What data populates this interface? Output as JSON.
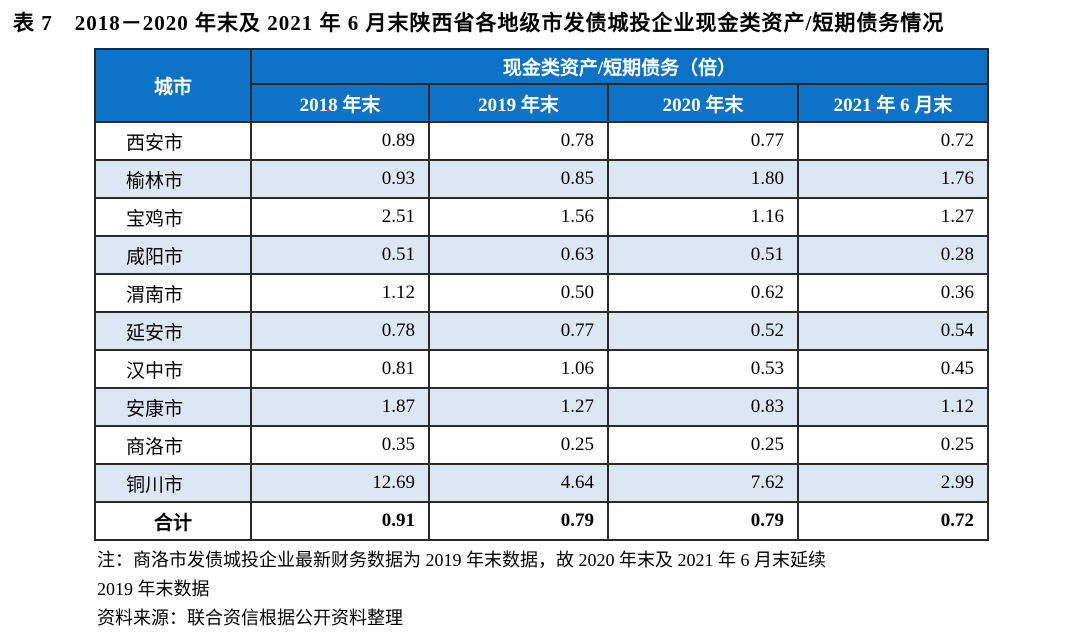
{
  "page": {
    "title": "表 7　2018－2020 年末及 2021 年 6 月末陕西省各地级市发债城投企业现金类资产/短期债务情况"
  },
  "table": {
    "corner_label": "城市",
    "group_label": "现金类资产/短期债务（倍）",
    "period_headers": [
      "2018 年末",
      "2019 年末",
      "2020 年末",
      "2021 年 6 月末"
    ],
    "rows": [
      {
        "city": "西安市",
        "values": [
          "0.89",
          "0.78",
          "0.77",
          "0.72"
        ]
      },
      {
        "city": "榆林市",
        "values": [
          "0.93",
          "0.85",
          "1.80",
          "1.76"
        ]
      },
      {
        "city": "宝鸡市",
        "values": [
          "2.51",
          "1.56",
          "1.16",
          "1.27"
        ]
      },
      {
        "city": "咸阳市",
        "values": [
          "0.51",
          "0.63",
          "0.51",
          "0.28"
        ]
      },
      {
        "city": "渭南市",
        "values": [
          "1.12",
          "0.50",
          "0.62",
          "0.36"
        ]
      },
      {
        "city": "延安市",
        "values": [
          "0.78",
          "0.77",
          "0.52",
          "0.54"
        ]
      },
      {
        "city": "汉中市",
        "values": [
          "0.81",
          "1.06",
          "0.53",
          "0.45"
        ]
      },
      {
        "city": "安康市",
        "values": [
          "1.87",
          "1.27",
          "0.83",
          "1.12"
        ]
      },
      {
        "city": "商洛市",
        "values": [
          "0.35",
          "0.25",
          "0.25",
          "0.25"
        ]
      },
      {
        "city": "铜川市",
        "values": [
          "12.69",
          "4.64",
          "7.62",
          "2.99"
        ]
      }
    ],
    "total_row": {
      "city": "合计",
      "values": [
        "0.91",
        "0.79",
        "0.79",
        "0.72"
      ]
    }
  },
  "notes": {
    "line1": "注：商洛市发债城投企业最新财务数据为 2019 年末数据，故 2020 年末及 2021 年 6 月末延续",
    "line2": "2019 年末数据",
    "source": "资料来源：联合资信根据公开资料整理"
  },
  "colors": {
    "header_bg": "#0E73C4",
    "stripe_bg": "#DCE7F3",
    "border": "#2A2A2A"
  }
}
